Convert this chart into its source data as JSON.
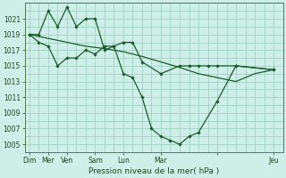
{
  "background_color": "#ceeee8",
  "grid_color": "#99ccbb",
  "line_color": "#1a5c2a",
  "title": "Pression niveau de la mer( hPa )",
  "ylim": [
    1004,
    1023
  ],
  "yticks": [
    1005,
    1007,
    1009,
    1011,
    1013,
    1015,
    1017,
    1019,
    1021
  ],
  "xtick_positions": [
    0,
    2,
    4,
    7,
    10,
    14,
    20,
    26
  ],
  "xlabels": [
    "Dim",
    "Mer",
    "Ven",
    "Sam",
    "Lun",
    "Mar",
    "",
    "Jeu"
  ],
  "xlim": [
    -0.5,
    27
  ],
  "x_upper": [
    0,
    1,
    2,
    3,
    4,
    5,
    6,
    7,
    8,
    9,
    10,
    11,
    12,
    14,
    16,
    17,
    18,
    19,
    20,
    22,
    26
  ],
  "y_upper": [
    1019,
    1019,
    1022,
    1020,
    1022.5,
    1020,
    1021,
    1021,
    1017,
    1017.5,
    1018,
    1018,
    1015.5,
    1014,
    1015,
    1015,
    1015,
    1015,
    1015,
    1015,
    1014.5
  ],
  "x_steep": [
    0,
    1,
    2,
    3,
    4,
    5,
    6,
    7,
    8,
    9,
    10,
    11,
    12,
    13,
    14,
    15,
    16,
    17,
    18,
    20,
    22,
    26
  ],
  "y_steep": [
    1019,
    1018,
    1017.5,
    1015,
    1016,
    1016,
    1017,
    1016.5,
    1017.5,
    1017.5,
    1014,
    1013.5,
    1011,
    1007,
    1006,
    1005.5,
    1005,
    1006,
    1006.5,
    1010.5,
    1015,
    1014.5
  ],
  "x_smooth": [
    0,
    2,
    4,
    6,
    8,
    10,
    12,
    14,
    16,
    18,
    20,
    22,
    24,
    26
  ],
  "y_smooth": [
    1019,
    1018.5,
    1018,
    1017.5,
    1017.2,
    1016.8,
    1016.2,
    1015.5,
    1014.8,
    1014,
    1013.5,
    1013,
    1014,
    1014.5
  ]
}
